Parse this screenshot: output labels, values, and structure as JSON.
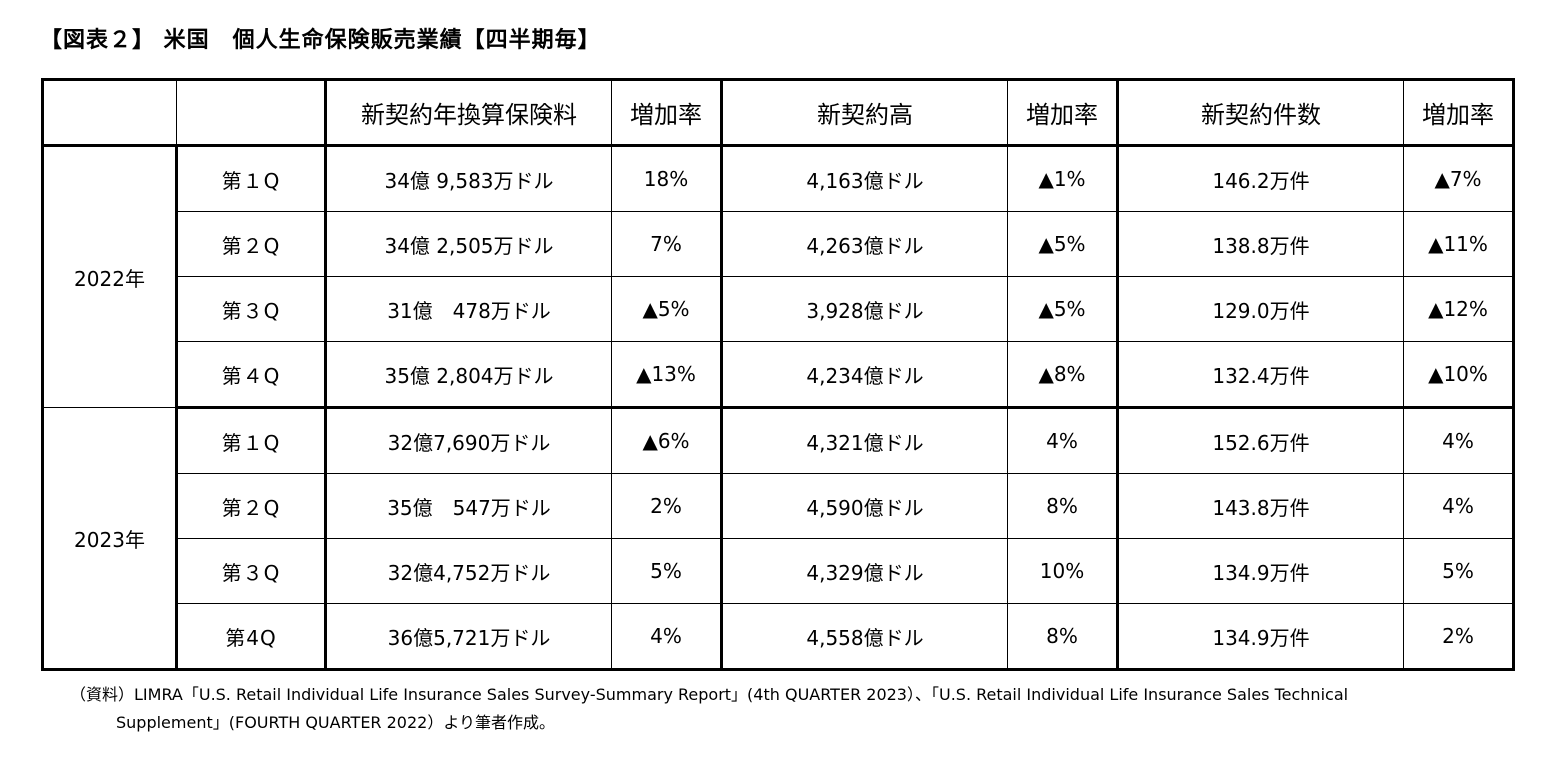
{
  "title": "【図表２】 米国　個人生命保険販売業績【四半期毎】",
  "headers": {
    "blank1": "",
    "blank2": "",
    "annualized_premium": "新契約年換算保険料",
    "growth1": "増加率",
    "face_amount": "新契約高",
    "growth2": "増加率",
    "policy_count": "新契約件数",
    "growth3": "増加率"
  },
  "years": [
    {
      "label": "2022年",
      "rows": [
        {
          "quarter": "第１Q",
          "premium": "34億 9,583万ドル",
          "g1": "18%",
          "face": "4,163億ドル",
          "g2": "▲1%",
          "count": "146.2万件",
          "g3": "▲7%"
        },
        {
          "quarter": "第２Q",
          "premium": "34億 2,505万ドル",
          "g1": "7%",
          "face": "4,263億ドル",
          "g2": "▲5%",
          "count": "138.8万件",
          "g3": "▲11%"
        },
        {
          "quarter": "第３Q",
          "premium": "31億　478万ドル",
          "g1": "▲5%",
          "face": "3,928億ドル",
          "g2": "▲5%",
          "count": "129.0万件",
          "g3": "▲12%"
        },
        {
          "quarter": "第４Q",
          "premium": "35億 2,804万ドル",
          "g1": "▲13%",
          "face": "4,234億ドル",
          "g2": "▲8%",
          "count": "132.4万件",
          "g3": "▲10%"
        }
      ]
    },
    {
      "label": "2023年",
      "rows": [
        {
          "quarter": "第１Q",
          "premium": "32億7,690万ドル",
          "g1": "▲6%",
          "face": "4,321億ドル",
          "g2": "4%",
          "count": "152.6万件",
          "g3": "4%"
        },
        {
          "quarter": "第２Q",
          "premium": "35億　547万ドル",
          "g1": "2%",
          "face": "4,590億ドル",
          "g2": "8%",
          "count": "143.8万件",
          "g3": "4%"
        },
        {
          "quarter": "第３Q",
          "premium": "32億4,752万ドル",
          "g1": "5%",
          "face": "4,329億ドル",
          "g2": "10%",
          "count": "134.9万件",
          "g3": "5%"
        },
        {
          "quarter": "第4Q",
          "premium": "36億5,721万ドル",
          "g1": "4%",
          "face": "4,558億ドル",
          "g2": "8%",
          "count": "134.9万件",
          "g3": "2%"
        }
      ]
    }
  ],
  "note": {
    "line1": "（資料）LIMRA「U.S. Retail Individual Life Insurance Sales Survey-Summary Report」(4th QUARTER 2023）、「U.S. Retail Individual Life Insurance Sales Technical",
    "line2": "Supplement」(FOURTH QUARTER 2022）より筆者作成。"
  }
}
